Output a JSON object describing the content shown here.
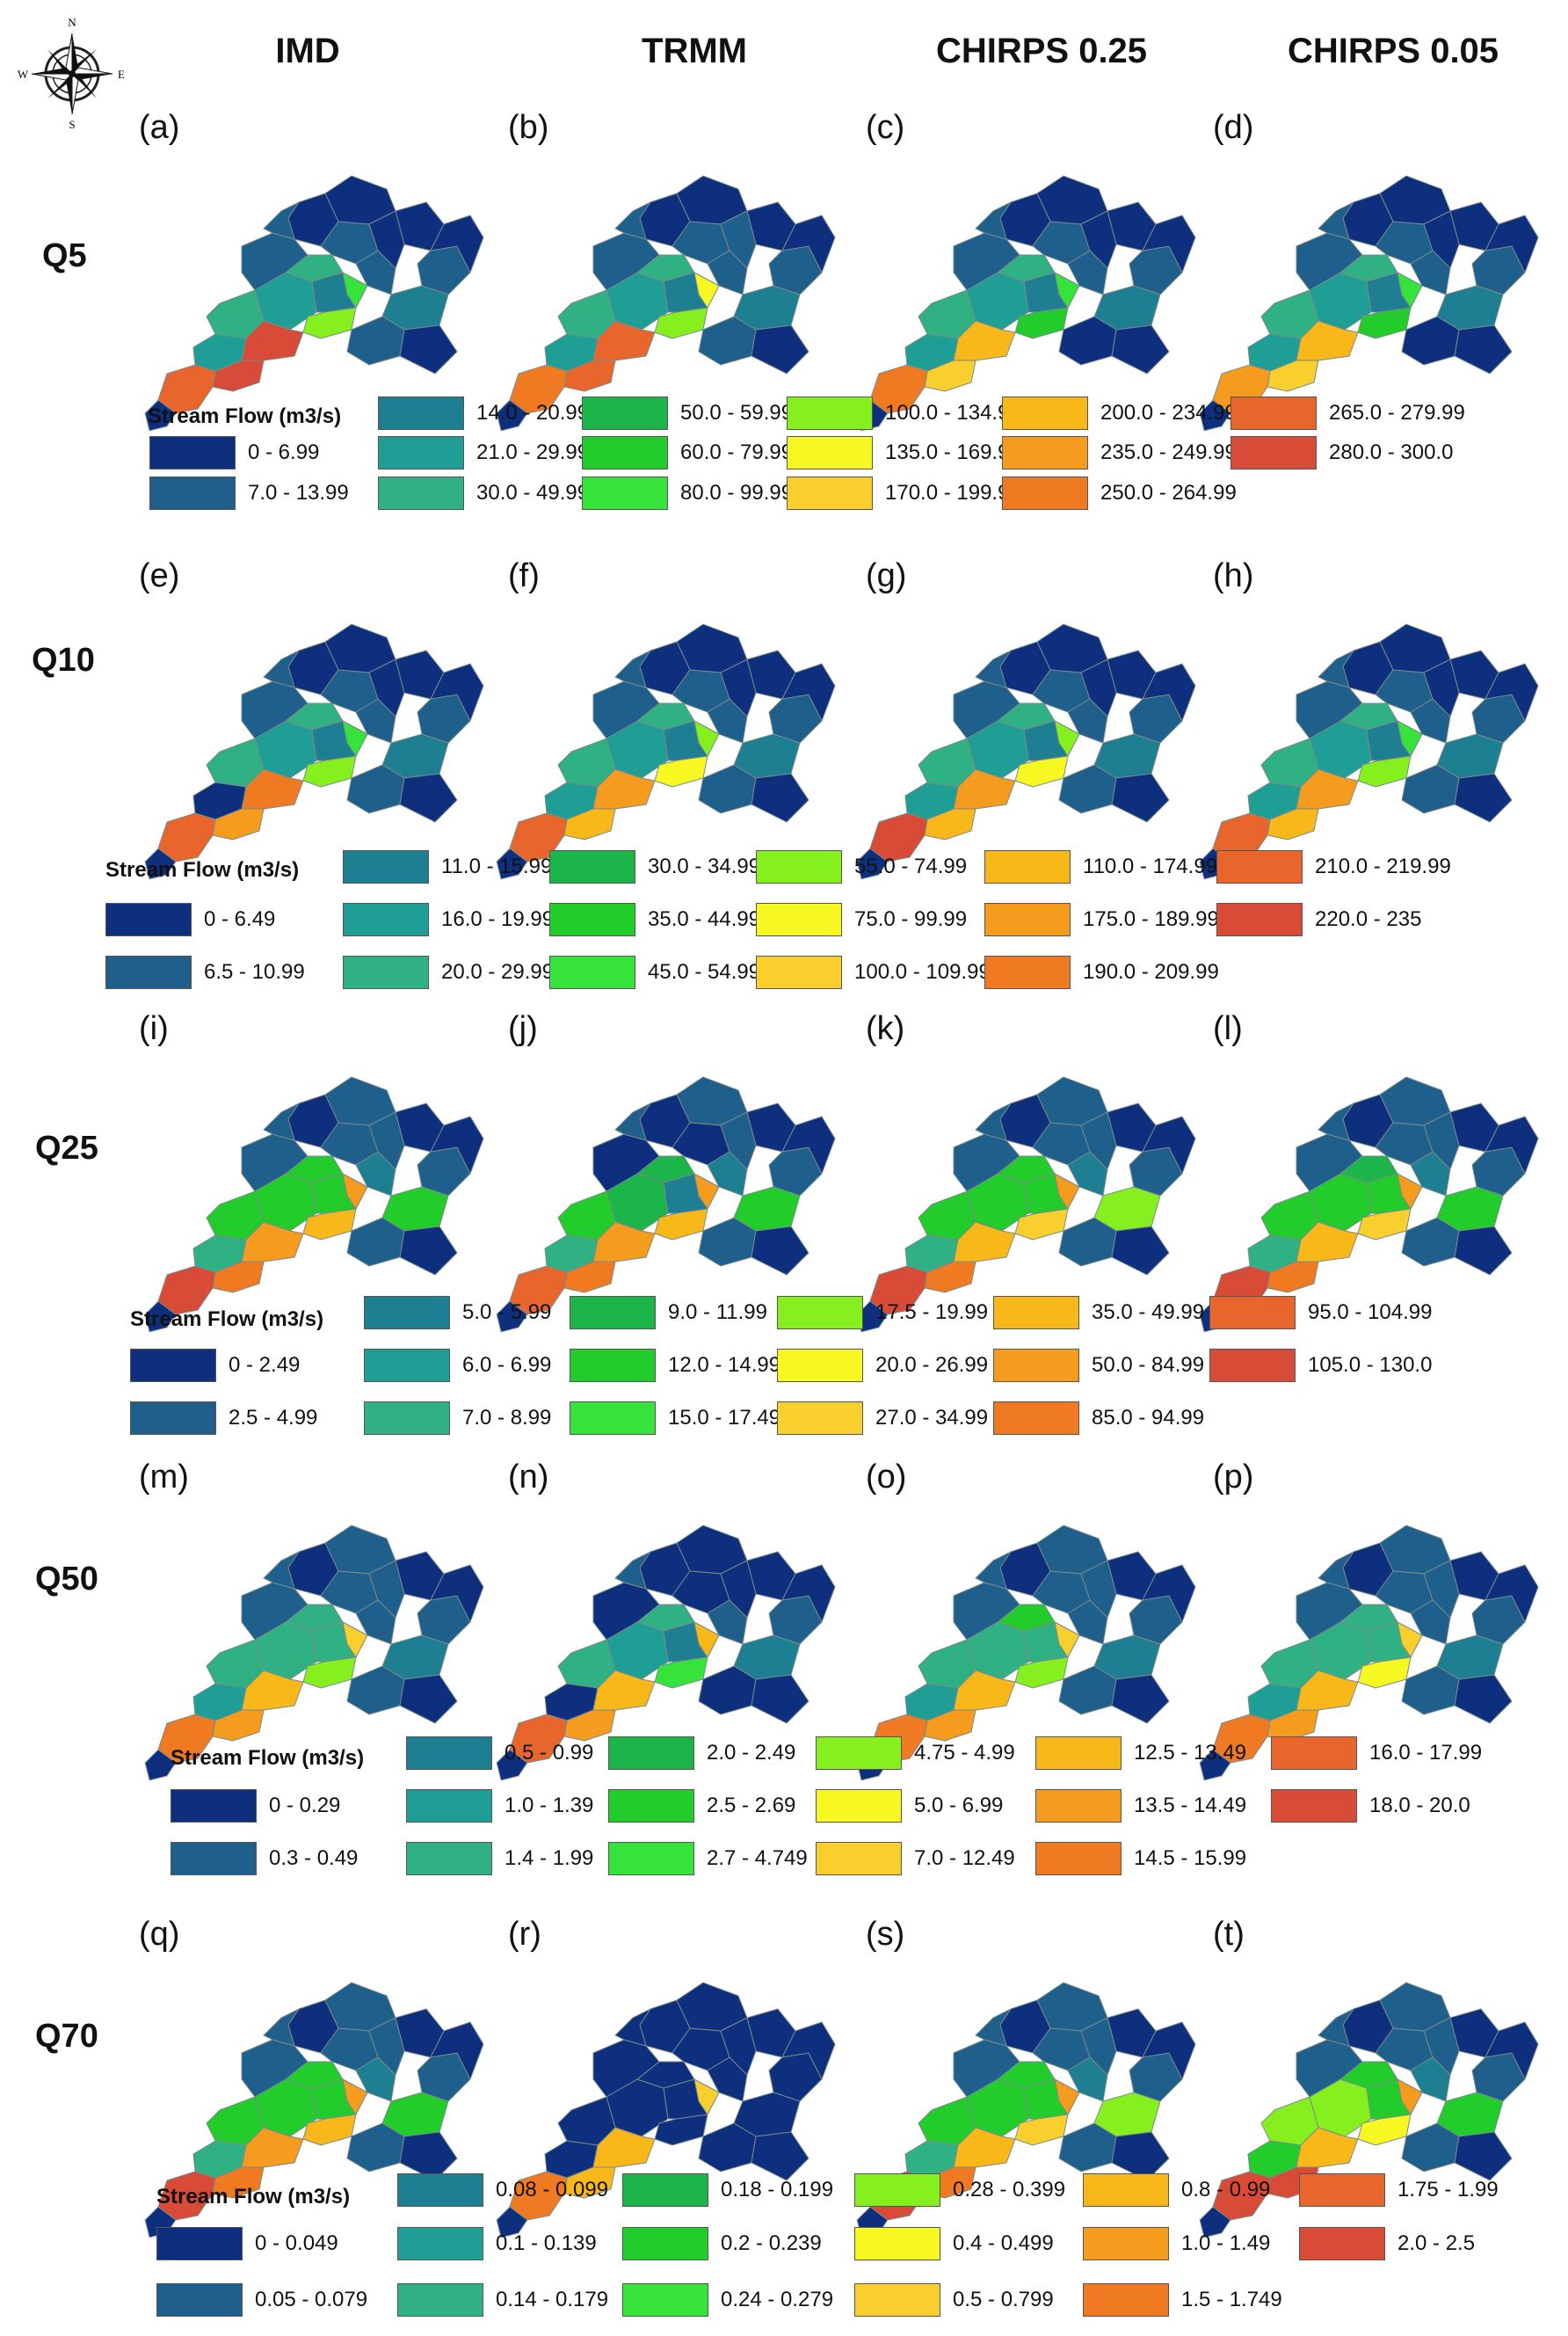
{
  "columns": [
    "IMD",
    "TRMM",
    "CHIRPS 0.25",
    "CHIRPS 0.05"
  ],
  "compass": {
    "n": "N",
    "s": "S",
    "e": "E",
    "w": "W"
  },
  "rows": [
    {
      "label": "Q5",
      "panels": [
        "(a)",
        "(b)",
        "(c)",
        "(d)"
      ],
      "legend": {
        "title": "Stream Flow (m3/s)",
        "classes": [
          {
            "range": "0 - 6.99",
            "color": "#0d2f7e"
          },
          {
            "range": "7.0 - 13.99",
            "color": "#1f5f8c"
          },
          {
            "range": "14.0 - 20.99",
            "color": "#1f7f92"
          },
          {
            "range": "21.0 - 29.99",
            "color": "#1f9e96"
          },
          {
            "range": "30.0 - 49.99",
            "color": "#2fb184"
          },
          {
            "range": "50.0 - 59.99",
            "color": "#1bb54a"
          },
          {
            "range": "60.0 - 79.99",
            "color": "#22cc2a"
          },
          {
            "range": "80.0 - 99.99",
            "color": "#36e33a"
          },
          {
            "range": "100.0 - 134.99",
            "color": "#86f01e"
          },
          {
            "range": "135.0 - 169.99",
            "color": "#f7f721"
          },
          {
            "range": "170.0 - 199.99",
            "color": "#f8cf2c"
          },
          {
            "range": "200.0 - 234.99",
            "color": "#f9b81a"
          },
          {
            "range": "235.0 - 249.99",
            "color": "#f59b1e"
          },
          {
            "range": "250.0 - 264.99",
            "color": "#f07a22"
          },
          {
            "range": "265.0 - 279.99",
            "color": "#e8662c"
          },
          {
            "range": "280.0 - 300.0",
            "color": "#d84b36"
          }
        ]
      },
      "maps": [
        [
          "0",
          "3",
          "4",
          "3",
          "0",
          "1",
          "2",
          "4",
          "1",
          "0",
          "0",
          "1",
          "1",
          "7",
          "8",
          "15",
          "15",
          "14",
          "1",
          "0",
          "2",
          "1",
          "0"
        ],
        [
          "0",
          "3",
          "4",
          "3",
          "0",
          "1",
          "2",
          "4",
          "1",
          "0",
          "1",
          "1",
          "1",
          "9",
          "8",
          "14",
          "14",
          "13",
          "1",
          "0",
          "2",
          "1",
          "0"
        ],
        [
          "0",
          "3",
          "4",
          "3",
          "0",
          "1",
          "2",
          "4",
          "1",
          "0",
          "0",
          "1",
          "1",
          "7",
          "6",
          "11",
          "10",
          "13",
          "1",
          "0",
          "2",
          "0",
          "0"
        ],
        [
          "0",
          "3",
          "4",
          "3",
          "0",
          "1",
          "2",
          "4",
          "1",
          "0",
          "0",
          "1",
          "1",
          "7",
          "6",
          "11",
          "10",
          "12",
          "1",
          "0",
          "2",
          "0",
          "0"
        ]
      ]
    },
    {
      "label": "Q10",
      "panels": [
        "(e)",
        "(f)",
        "(g)",
        "(h)"
      ],
      "legend": {
        "title": "Stream Flow (m3/s)",
        "classes": [
          {
            "range": "0 - 6.49",
            "color": "#0d2f7e"
          },
          {
            "range": "6.5 - 10.99",
            "color": "#1f5f8c"
          },
          {
            "range": "11.0 - 15.99",
            "color": "#1f7f92"
          },
          {
            "range": "16.0 - 19.99",
            "color": "#1f9e96"
          },
          {
            "range": "20.0 - 29.99",
            "color": "#2fb184"
          },
          {
            "range": "30.0 - 34.99",
            "color": "#1bb54a"
          },
          {
            "range": "35.0 - 44.99",
            "color": "#22cc2a"
          },
          {
            "range": "45.0 - 54.99",
            "color": "#36e33a"
          },
          {
            "range": "55.0 - 74.99",
            "color": "#86f01e"
          },
          {
            "range": "75.0 - 99.99",
            "color": "#f7f721"
          },
          {
            "range": "100.0 - 109.99",
            "color": "#f8cf2c"
          },
          {
            "range": "110.0 - 174.99",
            "color": "#f9b81a"
          },
          {
            "range": "175.0 - 189.99",
            "color": "#f59b1e"
          },
          {
            "range": "190.0 - 209.99",
            "color": "#f07a22"
          },
          {
            "range": "210.0 - 219.99",
            "color": "#e8662c"
          },
          {
            "range": "220.0 - 235",
            "color": "#d84b36"
          }
        ]
      },
      "maps": [
        [
          "0",
          "3",
          "4",
          "0",
          "0",
          "1",
          "2",
          "4",
          "1",
          "0",
          "0",
          "1",
          "1",
          "7",
          "8",
          "13",
          "12",
          "14",
          "1",
          "0",
          "2",
          "1",
          "0"
        ],
        [
          "0",
          "3",
          "4",
          "3",
          "0",
          "1",
          "2",
          "4",
          "1",
          "0",
          "0",
          "1",
          "1",
          "8",
          "9",
          "12",
          "11",
          "14",
          "1",
          "0",
          "2",
          "1",
          "0"
        ],
        [
          "0",
          "3",
          "4",
          "3",
          "0",
          "1",
          "2",
          "4",
          "1",
          "0",
          "0",
          "1",
          "1",
          "8",
          "9",
          "12",
          "11",
          "15",
          "1",
          "0",
          "2",
          "1",
          "0"
        ],
        [
          "0",
          "3",
          "4",
          "3",
          "0",
          "1",
          "2",
          "4",
          "1",
          "0",
          "0",
          "1",
          "1",
          "7",
          "8",
          "12",
          "11",
          "14",
          "1",
          "0",
          "2",
          "1",
          "0"
        ]
      ]
    },
    {
      "label": "Q25",
      "panels": [
        "(i)",
        "(j)",
        "(k)",
        "(l)"
      ],
      "legend": {
        "title": "Stream Flow (m3/s)",
        "classes": [
          {
            "range": "0 - 2.49",
            "color": "#0d2f7e"
          },
          {
            "range": "2.5 - 4.99",
            "color": "#1f5f8c"
          },
          {
            "range": "5.0 - 5.99",
            "color": "#1f7f92"
          },
          {
            "range": "6.0 - 6.99",
            "color": "#1f9e96"
          },
          {
            "range": "7.0 - 8.99",
            "color": "#2fb184"
          },
          {
            "range": "9.0 - 11.99",
            "color": "#1bb54a"
          },
          {
            "range": "12.0 - 14.99",
            "color": "#22cc2a"
          },
          {
            "range": "15.0 - 17.49",
            "color": "#36e33a"
          },
          {
            "range": "17.5 - 19.99",
            "color": "#86f01e"
          },
          {
            "range": "20.0 - 26.99",
            "color": "#f7f721"
          },
          {
            "range": "27.0 - 34.99",
            "color": "#f8cf2c"
          },
          {
            "range": "35.0 - 49.99",
            "color": "#f9b81a"
          },
          {
            "range": "50.0 - 84.99",
            "color": "#f59b1e"
          },
          {
            "range": "85.0 - 94.99",
            "color": "#f07a22"
          },
          {
            "range": "95.0 - 104.99",
            "color": "#e8662c"
          },
          {
            "range": "105.0 - 130.0",
            "color": "#d84b36"
          }
        ]
      },
      "maps": [
        [
          "1",
          "6",
          "6",
          "4",
          "0",
          "1",
          "6",
          "6",
          "1",
          "0",
          "1",
          "2",
          "1",
          "12",
          "11",
          "12",
          "13",
          "15",
          "1",
          "0",
          "6",
          "1",
          "0"
        ],
        [
          "1",
          "5",
          "6",
          "4",
          "0",
          "0",
          "2",
          "5",
          "0",
          "0",
          "1",
          "2",
          "1",
          "12",
          "11",
          "12",
          "13",
          "14",
          "1",
          "0",
          "6",
          "1",
          "0"
        ],
        [
          "1",
          "6",
          "6",
          "4",
          "0",
          "1",
          "6",
          "6",
          "1",
          "0",
          "1",
          "2",
          "1",
          "12",
          "10",
          "11",
          "13",
          "15",
          "1",
          "0",
          "8",
          "1",
          "0"
        ],
        [
          "1",
          "6",
          "6",
          "4",
          "0",
          "1",
          "6",
          "5",
          "1",
          "0",
          "1",
          "2",
          "1",
          "12",
          "10",
          "11",
          "13",
          "15",
          "1",
          "0",
          "6",
          "1",
          "0"
        ]
      ]
    },
    {
      "label": "Q50",
      "panels": [
        "(m)",
        "(n)",
        "(o)",
        "(p)"
      ],
      "legend": {
        "title": "Stream Flow (m3/s)",
        "classes": [
          {
            "range": "0 - 0.29",
            "color": "#0d2f7e"
          },
          {
            "range": "0.3 - 0.49",
            "color": "#1f5f8c"
          },
          {
            "range": "0.5 - 0.99",
            "color": "#1f7f92"
          },
          {
            "range": "1.0 - 1.39",
            "color": "#1f9e96"
          },
          {
            "range": "1.4 - 1.99",
            "color": "#2fb184"
          },
          {
            "range": "2.0 - 2.49",
            "color": "#1bb54a"
          },
          {
            "range": "2.5 - 2.69",
            "color": "#22cc2a"
          },
          {
            "range": "2.7 - 4.749",
            "color": "#36e33a"
          },
          {
            "range": "4.75 - 4.99",
            "color": "#86f01e"
          },
          {
            "range": "5.0 - 6.99",
            "color": "#f7f721"
          },
          {
            "range": "7.0 - 12.49",
            "color": "#f8cf2c"
          },
          {
            "range": "12.5 - 13.49",
            "color": "#f9b81a"
          },
          {
            "range": "13.5 - 14.49",
            "color": "#f59b1e"
          },
          {
            "range": "14.5 - 15.99",
            "color": "#f07a22"
          },
          {
            "range": "16.0 - 17.99",
            "color": "#e8662c"
          },
          {
            "range": "18.0 - 20.0",
            "color": "#d84b36"
          }
        ]
      },
      "maps": [
        [
          "1",
          "4",
          "4",
          "3",
          "0",
          "1",
          "4",
          "4",
          "1",
          "0",
          "1",
          "1",
          "1",
          "10",
          "8",
          "11",
          "12",
          "13",
          "1",
          "0",
          "2",
          "1",
          "0"
        ],
        [
          "0",
          "3",
          "4",
          "0",
          "0",
          "0",
          "2",
          "4",
          "0",
          "0",
          "0",
          "1",
          "1",
          "11",
          "7",
          "11",
          "12",
          "14",
          "1",
          "0",
          "2",
          "0",
          "0"
        ],
        [
          "1",
          "4",
          "4",
          "3",
          "0",
          "1",
          "4",
          "6",
          "1",
          "0",
          "1",
          "1",
          "1",
          "10",
          "8",
          "11",
          "12",
          "13",
          "1",
          "0",
          "2",
          "1",
          "0"
        ],
        [
          "1",
          "4",
          "4",
          "3",
          "0",
          "1",
          "4",
          "4",
          "1",
          "0",
          "1",
          "1",
          "1",
          "10",
          "9",
          "11",
          "12",
          "13",
          "1",
          "0",
          "2",
          "1",
          "0"
        ]
      ]
    },
    {
      "label": "Q70",
      "panels": [
        "(q)",
        "(r)",
        "(s)",
        "(t)"
      ],
      "legend": {
        "title": "Stream Flow (m3/s)",
        "classes": [
          {
            "range": "0 - 0.049",
            "color": "#0d2f7e"
          },
          {
            "range": "0.05 - 0.079",
            "color": "#1f5f8c"
          },
          {
            "range": "0.08 - 0.099",
            "color": "#1f7f92"
          },
          {
            "range": "0.1 - 0.139",
            "color": "#1f9e96"
          },
          {
            "range": "0.14 - 0.179",
            "color": "#2fb184"
          },
          {
            "range": "0.18 - 0.199",
            "color": "#1bb54a"
          },
          {
            "range": "0.2 - 0.239",
            "color": "#22cc2a"
          },
          {
            "range": "0.24 - 0.279",
            "color": "#36e33a"
          },
          {
            "range": "0.28 - 0.399",
            "color": "#86f01e"
          },
          {
            "range": "0.4 - 0.499",
            "color": "#f7f721"
          },
          {
            "range": "0.5 - 0.799",
            "color": "#f8cf2c"
          },
          {
            "range": "0.8 - 0.99",
            "color": "#f9b81a"
          },
          {
            "range": "1.0 - 1.49",
            "color": "#f59b1e"
          },
          {
            "range": "1.5 - 1.749",
            "color": "#f07a22"
          },
          {
            "range": "1.75 - 1.99",
            "color": "#e8662c"
          },
          {
            "range": "2.0 - 2.5",
            "color": "#d84b36"
          }
        ]
      },
      "maps": [
        [
          "1",
          "6",
          "6",
          "4",
          "0",
          "1",
          "6",
          "6",
          "1",
          "0",
          "1",
          "2",
          "1",
          "12",
          "11",
          "12",
          "13",
          "15",
          "1",
          "0",
          "6",
          "1",
          "0"
        ],
        [
          "0",
          "0",
          "0",
          "0",
          "0",
          "0",
          "0",
          "0",
          "0",
          "0",
          "0",
          "0",
          "0",
          "10",
          "0",
          "11",
          "11",
          "13",
          "0",
          "0",
          "0",
          "0",
          "0"
        ],
        [
          "1",
          "6",
          "6",
          "4",
          "0",
          "1",
          "6",
          "6",
          "1",
          "0",
          "1",
          "2",
          "1",
          "12",
          "10",
          "11",
          "13",
          "15",
          "1",
          "0",
          "8",
          "1",
          "0"
        ],
        [
          "1",
          "8",
          "8",
          "6",
          "0",
          "1",
          "6",
          "6",
          "1",
          "0",
          "1",
          "2",
          "1",
          "12",
          "9",
          "11",
          "15",
          "15",
          "1",
          "0",
          "6",
          "1",
          "0"
        ]
      ]
    }
  ]
}
